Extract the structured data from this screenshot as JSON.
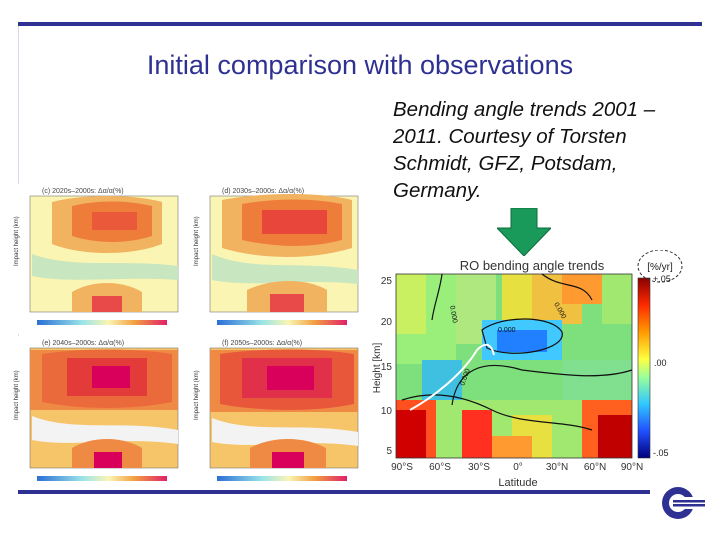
{
  "slide": {
    "title": "Initial comparison with observations",
    "caption": "Bending angle trends 2001 – 2011. Courtesy of Torsten Schmidt, GFZ, Potsdam, Germany."
  },
  "panels": [
    {
      "label": "(c) 2020s–2000s: Δα/α(%)"
    },
    {
      "label": "(d) 2030s–2000s: Δα/α(%)"
    },
    {
      "label": "(e) 2040s–2000s: Δα/α(%)"
    },
    {
      "label": "(f) 2050s–2000s: Δα/α(%)"
    }
  ],
  "panel_axis": {
    "ylabel": "Impact height (km)"
  },
  "ro_chart": {
    "title": "RO bending angle trends",
    "ylabel": "Height [km]",
    "xlabel": "Latitude",
    "unit": "[%/yr]",
    "yticks": [
      "25",
      "20",
      "15",
      "10",
      "5"
    ],
    "xticks": [
      "90°S",
      "60°S",
      "30°S",
      "0°",
      "30°N",
      "60°N",
      "90°N"
    ],
    "colorbar_ticks": [
      "+.05",
      ".00",
      "-.05"
    ],
    "contours": [
      "0.000",
      "0.000",
      "0.000",
      "0.000"
    ]
  },
  "colors": {
    "accent": "#2e3192",
    "arrow": "#1a9a5a"
  }
}
